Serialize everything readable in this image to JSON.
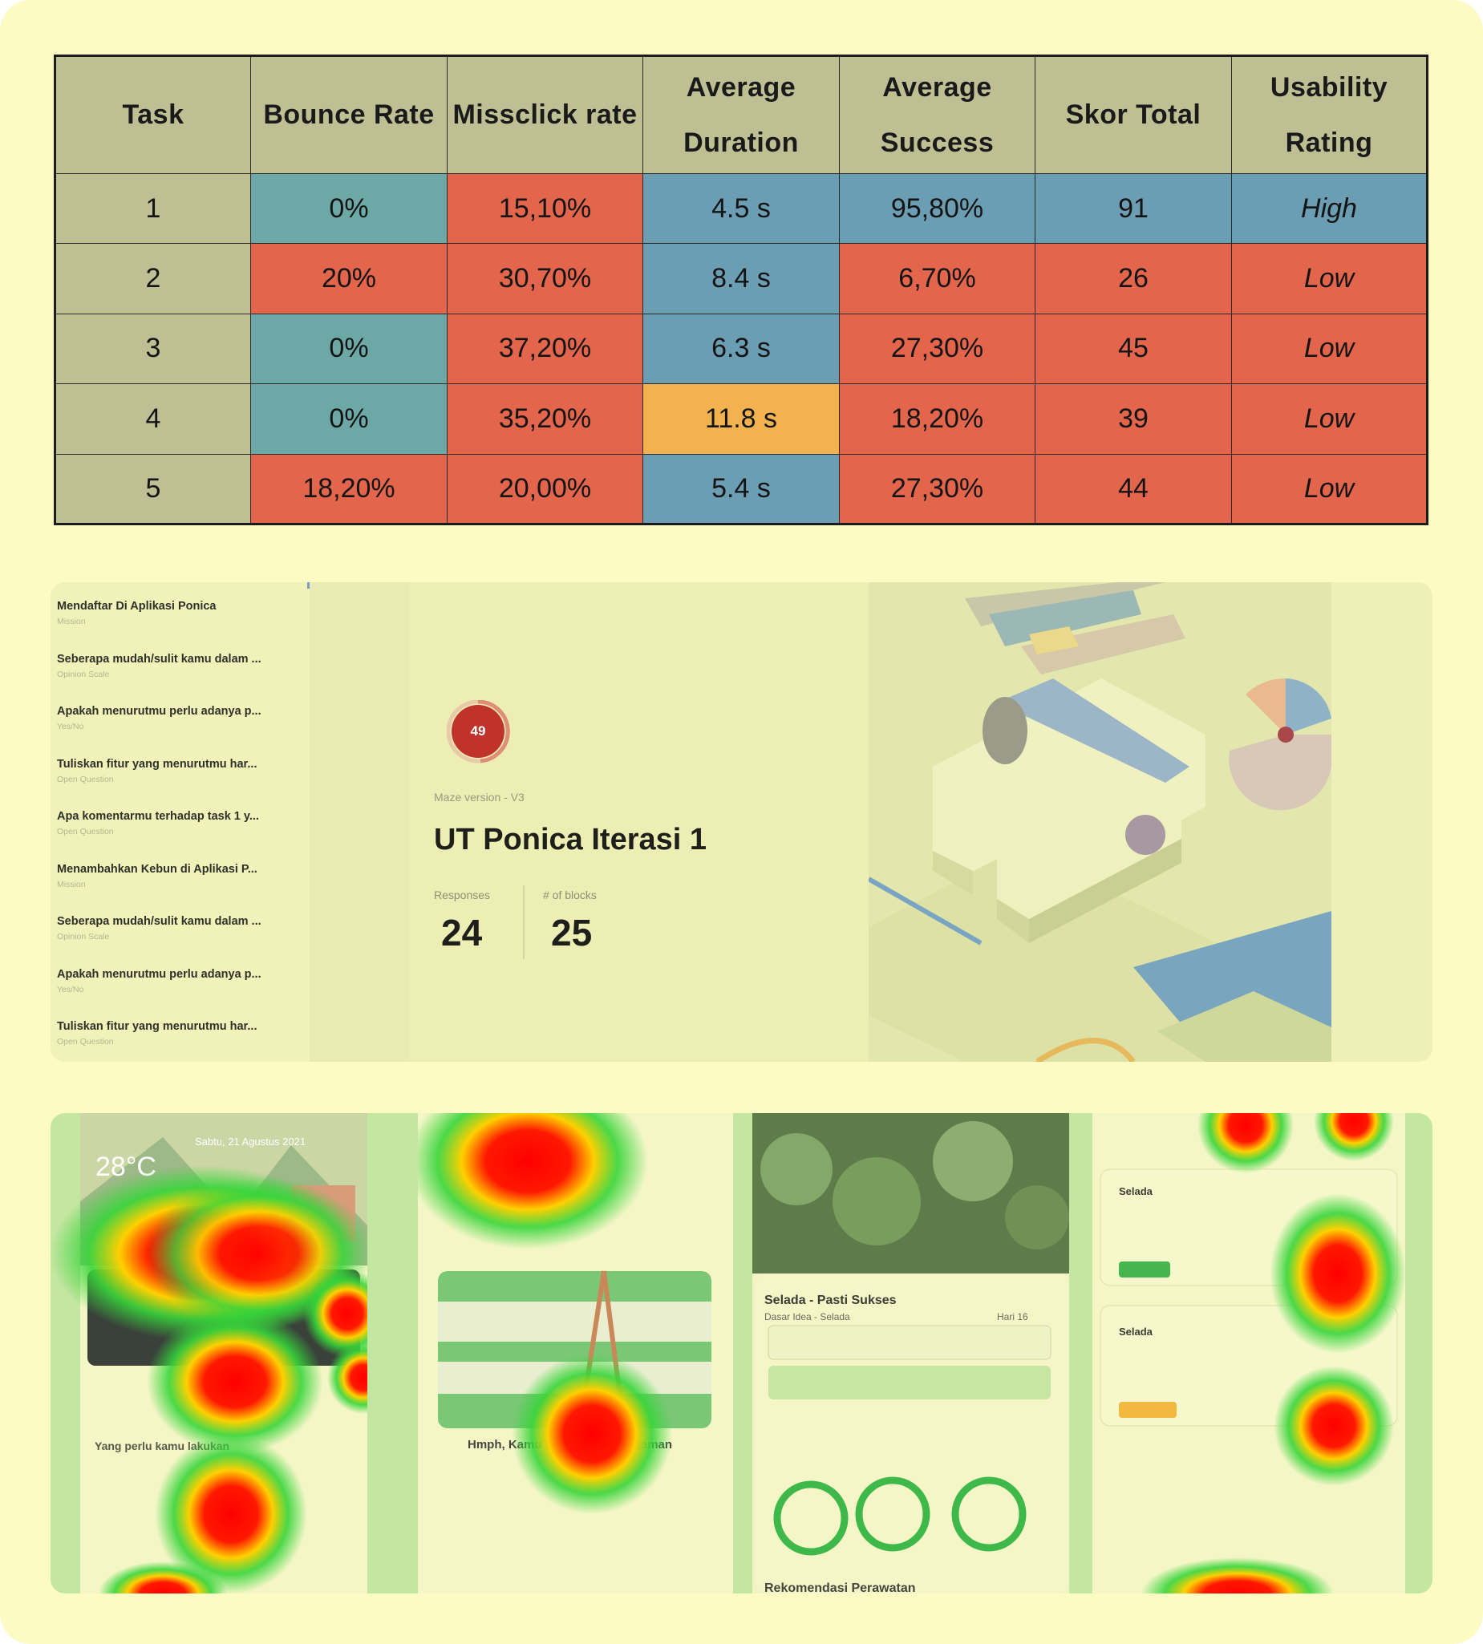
{
  "table": {
    "headers": [
      "Task",
      "Bounce Rate",
      "Missclick rate",
      "Average Duration",
      "Average Success",
      "Skor Total",
      "Usability Rating"
    ],
    "rows": [
      {
        "task": "1",
        "bounce": "0%",
        "missclick": "15,10%",
        "duration": "4.5 s",
        "success": "95,80%",
        "skor": "91",
        "rating": "High"
      },
      {
        "task": "2",
        "bounce": "20%",
        "missclick": "30,70%",
        "duration": "8.4 s",
        "success": "6,70%",
        "skor": "26",
        "rating": "Low"
      },
      {
        "task": "3",
        "bounce": "0%",
        "missclick": "37,20%",
        "duration": "6.3 s",
        "success": "27,30%",
        "skor": "45",
        "rating": "Low"
      },
      {
        "task": "4",
        "bounce": "0%",
        "missclick": "35,20%",
        "duration": "11.8 s",
        "success": "18,20%",
        "skor": "39",
        "rating": "Low"
      },
      {
        "task": "5",
        "bounce": "18,20%",
        "missclick": "20,00%",
        "duration": "5.4 s",
        "success": "27,30%",
        "skor": "44",
        "rating": "Low"
      }
    ],
    "colors": {
      "header": "#bfbf94",
      "teal": "#6ca9a6",
      "red": "#e2654c",
      "blue": "#6b9db3",
      "orange": "#f2b24f"
    }
  },
  "maze": {
    "sidebar": [
      {
        "title": "Mendaftar Di Aplikasi Ponica",
        "type": "Mission"
      },
      {
        "title": "Seberapa mudah/sulit kamu dalam ...",
        "type": "Opinion Scale"
      },
      {
        "title": "Apakah menurutmu perlu adanya p...",
        "type": "Yes/No"
      },
      {
        "title": "Tuliskan fitur yang menurutmu har...",
        "type": "Open Question"
      },
      {
        "title": "Apa komentarmu terhadap task 1 y...",
        "type": "Open Question"
      },
      {
        "title": "Menambahkan Kebun di Aplikasi P...",
        "type": "Mission"
      },
      {
        "title": "Seberapa mudah/sulit kamu dalam ...",
        "type": "Opinion Scale"
      },
      {
        "title": "Apakah menurutmu perlu adanya p...",
        "type": "Yes/No"
      },
      {
        "title": "Tuliskan fitur yang menurutmu har...",
        "type": "Open Question"
      }
    ],
    "score": "49",
    "version": "Maze version - V3",
    "title": "UT Ponica Iterasi 1",
    "responses_label": "Responses",
    "responses": "24",
    "blocks_label": "# of blocks",
    "blocks": "25"
  },
  "heatmaps": {
    "screen1": {
      "temp": "28°C",
      "date": "Sabtu, 21 Agustus 2021",
      "section": "Yang perlu kamu lakukan"
    },
    "screen2": {
      "caption": "Hmph, Kamu belum punya tanaman"
    },
    "screen3": {
      "title": "Selada - Pasti Sukses",
      "subtitle": "Dasar Idea - Selada",
      "day": "Hari 16",
      "footer": "Rekomendasi Perawatan"
    },
    "screen4": {
      "card1": "Selada",
      "card2": "Selada"
    }
  }
}
